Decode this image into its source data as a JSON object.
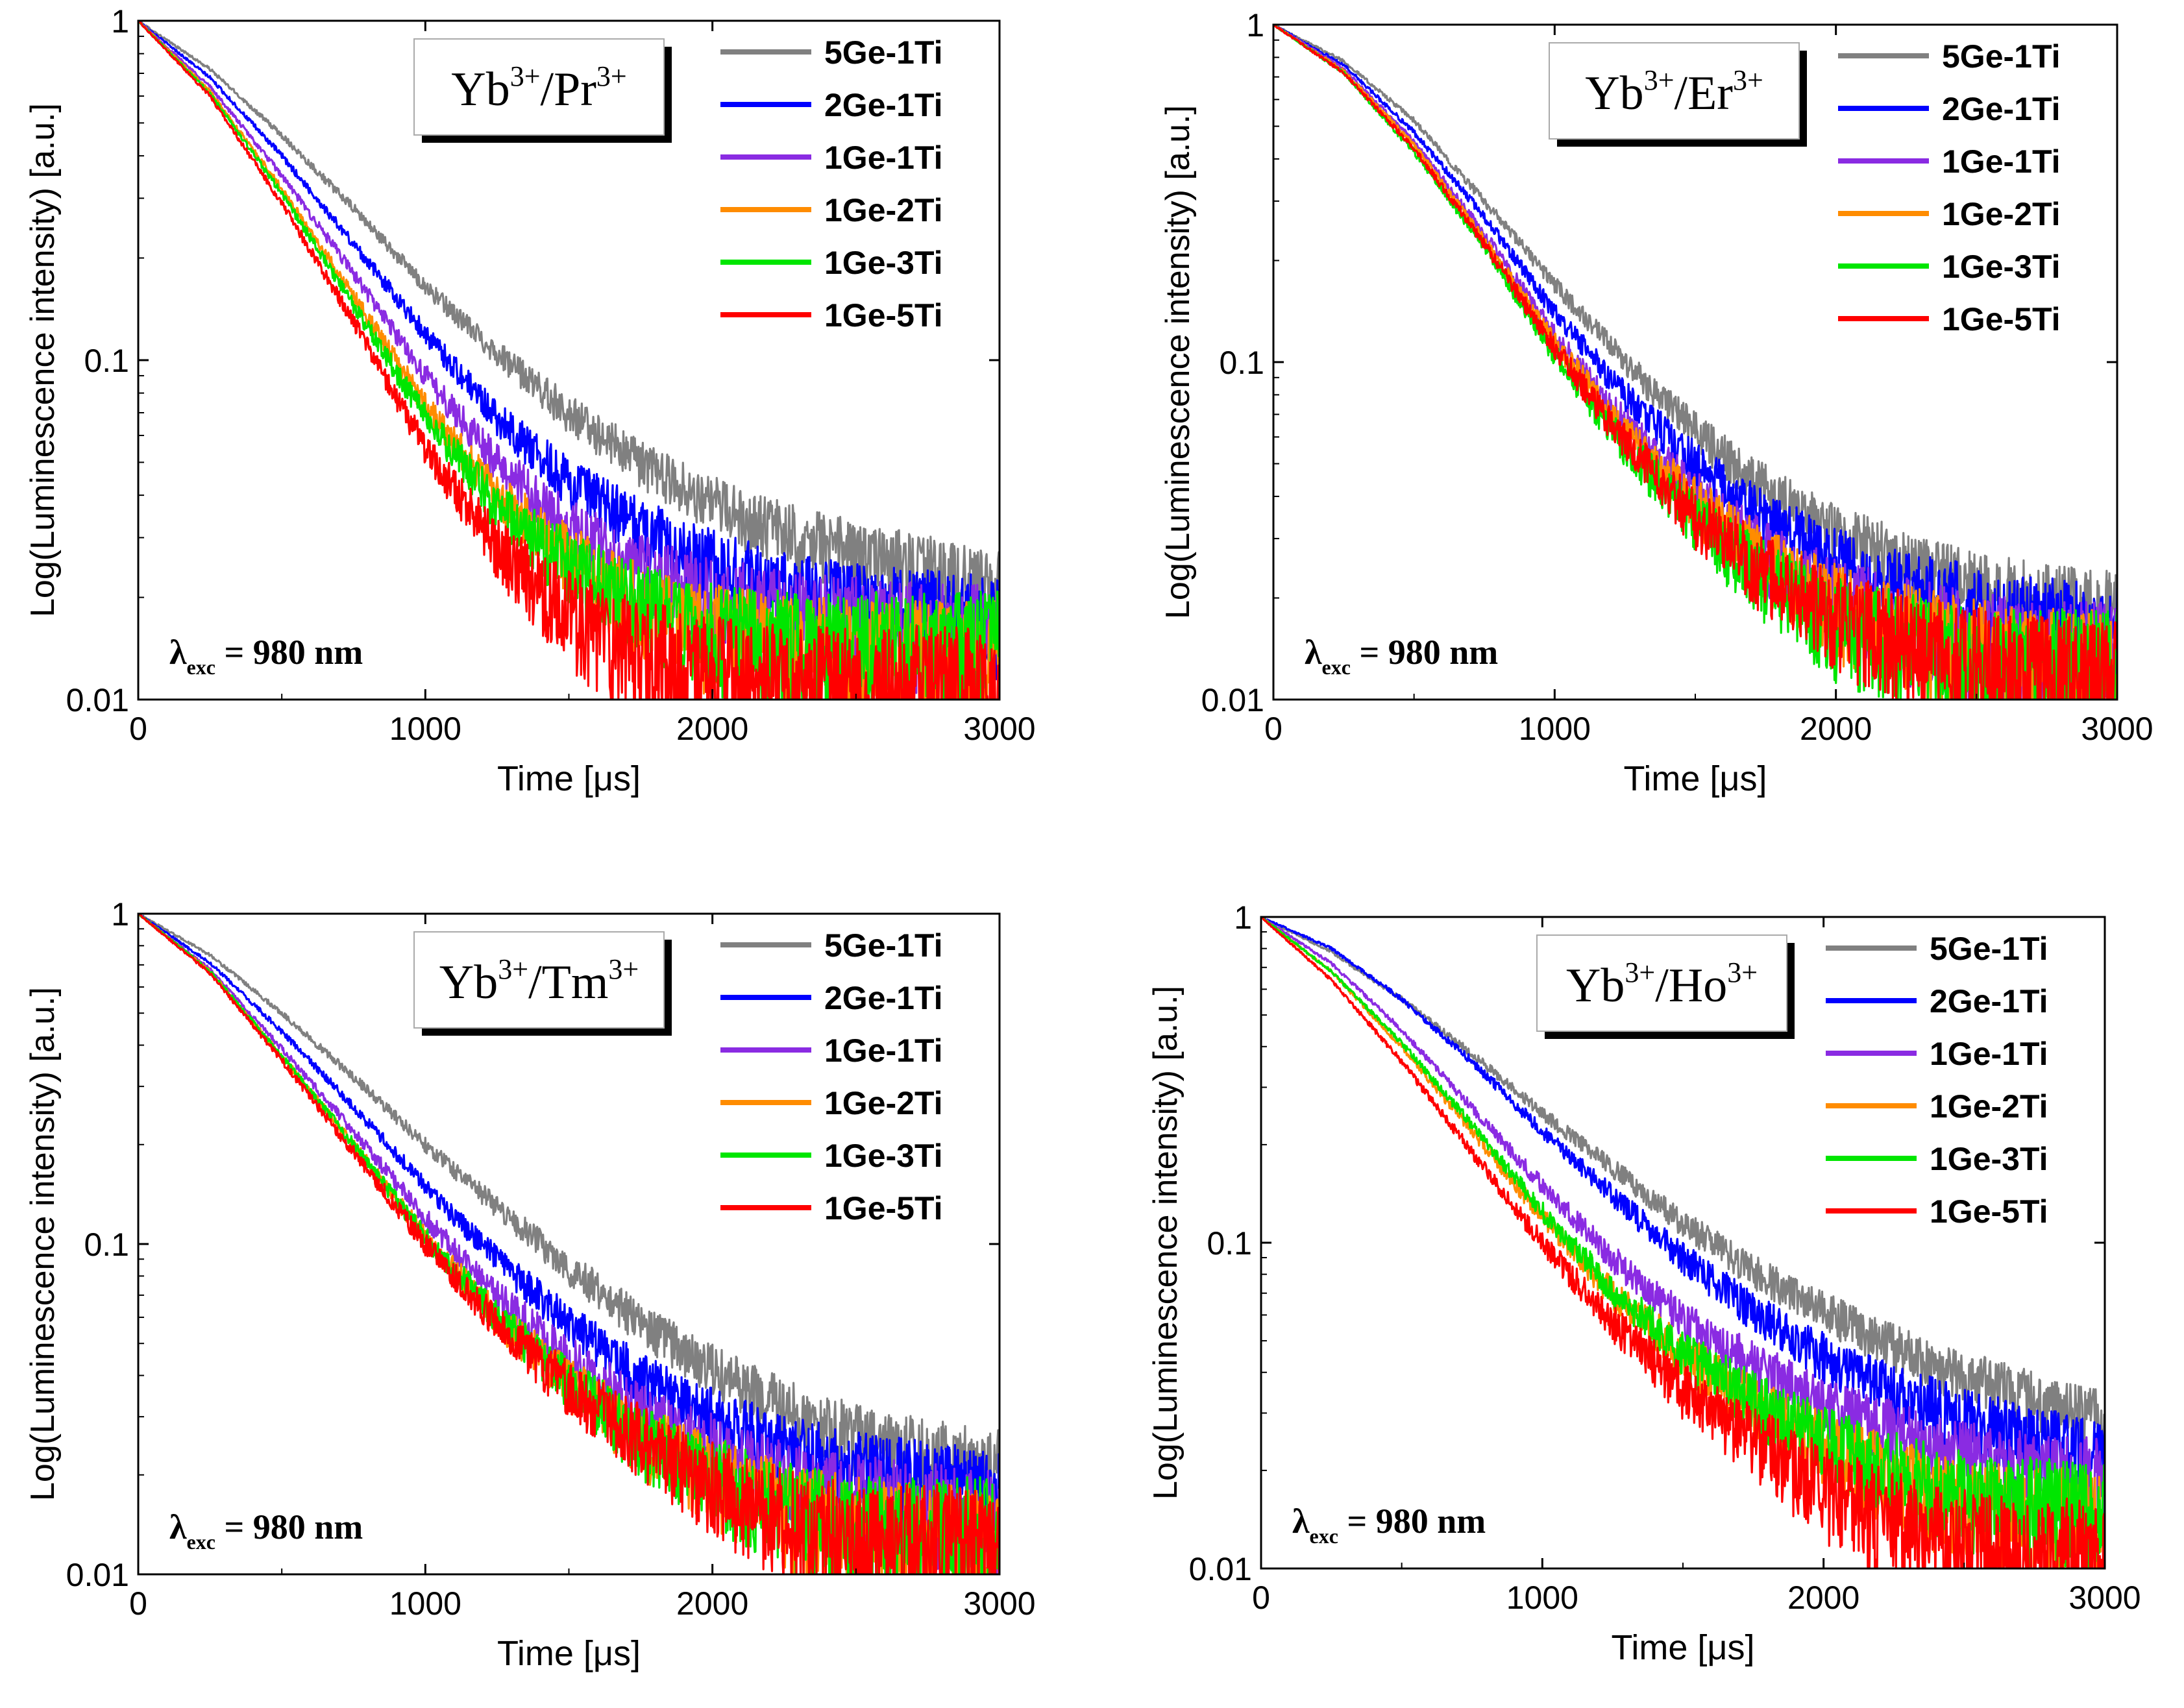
{
  "figure": {
    "excitation_symbol": "λ",
    "excitation_subscript": "exc",
    "excitation_value": "= 980 nm"
  },
  "chart_data": [
    {
      "type": "line",
      "panel": "top-left",
      "label_base": "Yb",
      "label_base_sup": "3+",
      "label_sep": "/",
      "label_ion": "Pr",
      "label_ion_sup": "3+",
      "xlabel": "Time [μs]",
      "ylabel": "Log(Luminescence intensity) [a.u.]",
      "xscale": "linear",
      "yscale": "log",
      "xlim": [
        0,
        3000
      ],
      "ylim": [
        0.01,
        1
      ],
      "xticks": [
        0,
        1000,
        2000,
        3000
      ],
      "xtick_labels": [
        "0",
        "1000",
        "2000",
        "3000"
      ],
      "yticks": [
        0.01,
        0.1,
        1
      ],
      "ytick_labels": [
        "0.01",
        "0.1",
        "1"
      ],
      "legend_position": "top-right",
      "series": [
        {
          "name": "5Ge-1Ti",
          "color": "#808080",
          "x": [
            0,
            250,
            500,
            750,
            1000,
            1250,
            1500,
            1750,
            2000,
            2250,
            2500,
            2750,
            3000
          ],
          "y": [
            1.0,
            0.72,
            0.46,
            0.28,
            0.165,
            0.105,
            0.07,
            0.05,
            0.038,
            0.031,
            0.027,
            0.024,
            0.021
          ]
        },
        {
          "name": "2Ge-1Ti",
          "color": "#0000ff",
          "x": [
            0,
            250,
            500,
            750,
            1000,
            1250,
            1500,
            1750,
            2000,
            2250,
            2500,
            2750,
            3000
          ],
          "y": [
            1.0,
            0.68,
            0.4,
            0.22,
            0.12,
            0.068,
            0.044,
            0.032,
            0.025,
            0.021,
            0.019,
            0.018,
            0.017
          ]
        },
        {
          "name": "1Ge-1Ti",
          "color": "#8a2be2",
          "x": [
            0,
            250,
            500,
            750,
            1000,
            1250,
            1500,
            1750,
            2000,
            2250,
            2500,
            2750,
            3000
          ],
          "y": [
            1.0,
            0.64,
            0.35,
            0.18,
            0.09,
            0.05,
            0.032,
            0.024,
            0.02,
            0.018,
            0.017,
            0.016,
            0.016
          ]
        },
        {
          "name": "1Ge-2Ti",
          "color": "#ff8c00",
          "x": [
            0,
            250,
            500,
            750,
            1000,
            1250,
            1500,
            1750,
            2000,
            2250,
            2500,
            2750,
            3000
          ],
          "y": [
            1.0,
            0.62,
            0.32,
            0.155,
            0.074,
            0.04,
            0.026,
            0.019,
            0.016,
            0.015,
            0.014,
            0.014,
            0.014
          ]
        },
        {
          "name": "1Ge-3Ti",
          "color": "#00e600",
          "x": [
            0,
            250,
            500,
            750,
            1000,
            1250,
            1500,
            1750,
            2000,
            2250,
            2500,
            2750,
            3000
          ],
          "y": [
            1.0,
            0.61,
            0.31,
            0.145,
            0.068,
            0.037,
            0.025,
            0.019,
            0.016,
            0.015,
            0.015,
            0.015,
            0.015
          ]
        },
        {
          "name": "1Ge-5Ti",
          "color": "#ff0000",
          "x": [
            0,
            250,
            500,
            750,
            1000,
            1250,
            1500,
            1750,
            2000,
            2250,
            2500,
            2750,
            3000
          ],
          "y": [
            1.0,
            0.6,
            0.29,
            0.13,
            0.055,
            0.028,
            0.018,
            0.014,
            0.012,
            0.011,
            0.011,
            0.011,
            0.011
          ]
        }
      ]
    },
    {
      "type": "line",
      "panel": "top-right",
      "label_base": "Yb",
      "label_base_sup": "3+",
      "label_sep": "/",
      "label_ion": "Er",
      "label_ion_sup": "3+",
      "xlabel": "Time [μs]",
      "ylabel": "Log(Luminescence intensity) [a.u.]",
      "xscale": "linear",
      "yscale": "log",
      "xlim": [
        0,
        3000
      ],
      "ylim": [
        0.01,
        1
      ],
      "xticks": [
        0,
        1000,
        2000,
        3000
      ],
      "xtick_labels": [
        "0",
        "1000",
        "2000",
        "3000"
      ],
      "yticks": [
        0.01,
        0.1,
        1
      ],
      "ytick_labels": [
        "0.01",
        "0.1",
        "1"
      ],
      "legend_position": "top-right",
      "series": [
        {
          "name": "5Ge-1Ti",
          "color": "#808080",
          "x": [
            0,
            250,
            500,
            750,
            1000,
            1250,
            1500,
            1750,
            2000,
            2250,
            2500,
            2750,
            3000
          ],
          "y": [
            1.0,
            0.78,
            0.52,
            0.3,
            0.17,
            0.1,
            0.063,
            0.042,
            0.031,
            0.025,
            0.021,
            0.019,
            0.018
          ]
        },
        {
          "name": "2Ge-1Ti",
          "color": "#0000ff",
          "x": [
            0,
            250,
            500,
            750,
            1000,
            1250,
            1500,
            1750,
            2000,
            2250,
            2500,
            2750,
            3000
          ],
          "y": [
            1.0,
            0.76,
            0.48,
            0.27,
            0.14,
            0.08,
            0.05,
            0.034,
            0.026,
            0.021,
            0.019,
            0.017,
            0.016
          ]
        },
        {
          "name": "1Ge-1Ti",
          "color": "#8a2be2",
          "x": [
            0,
            250,
            500,
            750,
            1000,
            1250,
            1500,
            1750,
            2000,
            2250,
            2500,
            2750,
            3000
          ],
          "y": [
            1.0,
            0.74,
            0.45,
            0.24,
            0.12,
            0.066,
            0.04,
            0.027,
            0.02,
            0.017,
            0.015,
            0.014,
            0.014
          ]
        },
        {
          "name": "1Ge-2Ti",
          "color": "#ff8c00",
          "x": [
            0,
            250,
            500,
            750,
            1000,
            1250,
            1500,
            1750,
            2000,
            2250,
            2500,
            2750,
            3000
          ],
          "y": [
            1.0,
            0.73,
            0.44,
            0.23,
            0.115,
            0.062,
            0.038,
            0.026,
            0.019,
            0.016,
            0.014,
            0.013,
            0.013
          ]
        },
        {
          "name": "1Ge-3Ti",
          "color": "#00e600",
          "x": [
            0,
            250,
            500,
            750,
            1000,
            1250,
            1500,
            1750,
            2000,
            2250,
            2500,
            2750,
            3000
          ],
          "y": [
            1.0,
            0.72,
            0.42,
            0.22,
            0.105,
            0.056,
            0.034,
            0.023,
            0.017,
            0.015,
            0.013,
            0.013,
            0.013
          ]
        },
        {
          "name": "1Ge-5Ti",
          "color": "#ff0000",
          "x": [
            0,
            250,
            500,
            750,
            1000,
            1250,
            1500,
            1750,
            2000,
            2250,
            2500,
            2750,
            3000
          ],
          "y": [
            1.0,
            0.72,
            0.43,
            0.225,
            0.11,
            0.058,
            0.035,
            0.024,
            0.018,
            0.015,
            0.013,
            0.012,
            0.012
          ]
        }
      ]
    },
    {
      "type": "line",
      "panel": "bottom-left",
      "label_base": "Yb",
      "label_base_sup": "3+",
      "label_sep": "/",
      "label_ion": "Tm",
      "label_ion_sup": "3+",
      "xlabel": "Time [μs]",
      "ylabel": "Log(Luminescence intensity) [a.u.]",
      "xscale": "linear",
      "yscale": "log",
      "xlim": [
        0,
        3000
      ],
      "ylim": [
        0.01,
        1
      ],
      "xticks": [
        0,
        1000,
        2000,
        3000
      ],
      "xtick_labels": [
        "0",
        "1000",
        "2000",
        "3000"
      ],
      "yticks": [
        0.01,
        0.1,
        1
      ],
      "ytick_labels": [
        "0.01",
        "0.1",
        "1"
      ],
      "legend_position": "top-right",
      "series": [
        {
          "name": "5Ge-1Ti",
          "color": "#808080",
          "x": [
            0,
            250,
            500,
            750,
            1000,
            1250,
            1500,
            1750,
            2000,
            2250,
            2500,
            2750,
            3000
          ],
          "y": [
            1.0,
            0.75,
            0.5,
            0.32,
            0.2,
            0.13,
            0.085,
            0.058,
            0.042,
            0.032,
            0.026,
            0.023,
            0.021
          ]
        },
        {
          "name": "2Ge-1Ti",
          "color": "#0000ff",
          "x": [
            0,
            250,
            500,
            750,
            1000,
            1250,
            1500,
            1750,
            2000,
            2250,
            2500,
            2750,
            3000
          ],
          "y": [
            1.0,
            0.71,
            0.44,
            0.26,
            0.15,
            0.09,
            0.058,
            0.04,
            0.03,
            0.024,
            0.021,
            0.019,
            0.018
          ]
        },
        {
          "name": "1Ge-1Ti",
          "color": "#8a2be2",
          "x": [
            0,
            250,
            500,
            750,
            1000,
            1250,
            1500,
            1750,
            2000,
            2250,
            2500,
            2750,
            3000
          ],
          "y": [
            1.0,
            0.68,
            0.39,
            0.22,
            0.12,
            0.07,
            0.045,
            0.031,
            0.024,
            0.019,
            0.017,
            0.016,
            0.015
          ]
        },
        {
          "name": "1Ge-2Ti",
          "color": "#ff8c00",
          "x": [
            0,
            250,
            500,
            750,
            1000,
            1250,
            1500,
            1750,
            2000,
            2250,
            2500,
            2750,
            3000
          ],
          "y": [
            1.0,
            0.67,
            0.37,
            0.2,
            0.105,
            0.06,
            0.038,
            0.026,
            0.02,
            0.016,
            0.014,
            0.013,
            0.013
          ]
        },
        {
          "name": "1Ge-3Ti",
          "color": "#00e600",
          "x": [
            0,
            250,
            500,
            750,
            1000,
            1250,
            1500,
            1750,
            2000,
            2250,
            2500,
            2750,
            3000
          ],
          "y": [
            1.0,
            0.67,
            0.37,
            0.2,
            0.105,
            0.06,
            0.038,
            0.026,
            0.02,
            0.016,
            0.014,
            0.014,
            0.014
          ]
        },
        {
          "name": "1Ge-5Ti",
          "color": "#ff0000",
          "x": [
            0,
            250,
            500,
            750,
            1000,
            1250,
            1500,
            1750,
            2000,
            2250,
            2500,
            2750,
            3000
          ],
          "y": [
            1.0,
            0.66,
            0.36,
            0.19,
            0.1,
            0.058,
            0.037,
            0.026,
            0.019,
            0.015,
            0.013,
            0.013,
            0.013
          ]
        }
      ]
    },
    {
      "type": "line",
      "panel": "bottom-right",
      "label_base": "Yb",
      "label_base_sup": "3+",
      "label_sep": "/",
      "label_ion": "Ho",
      "label_ion_sup": "3+",
      "xlabel": "Time [μs]",
      "ylabel": "Log(Luminescence intensity) [a.u.]",
      "xscale": "linear",
      "yscale": "log",
      "xlim": [
        0,
        3000
      ],
      "ylim": [
        0.01,
        1
      ],
      "xticks": [
        0,
        1000,
        2000,
        3000
      ],
      "xtick_labels": [
        "0",
        "1000",
        "2000",
        "3000"
      ],
      "yticks": [
        0.01,
        0.1,
        1
      ],
      "ytick_labels": [
        "0.01",
        "0.1",
        "1"
      ],
      "legend_position": "top-right",
      "series": [
        {
          "name": "5Ge-1Ti",
          "color": "#808080",
          "x": [
            0,
            250,
            500,
            750,
            1000,
            1250,
            1500,
            1750,
            2000,
            2250,
            2500,
            2750,
            3000
          ],
          "y": [
            1.0,
            0.78,
            0.56,
            0.38,
            0.25,
            0.17,
            0.115,
            0.082,
            0.062,
            0.048,
            0.039,
            0.033,
            0.028
          ]
        },
        {
          "name": "2Ge-1Ti",
          "color": "#0000ff",
          "x": [
            0,
            250,
            500,
            750,
            1000,
            1250,
            1500,
            1750,
            2000,
            2250,
            2500,
            2750,
            3000
          ],
          "y": [
            1.0,
            0.8,
            0.56,
            0.36,
            0.22,
            0.14,
            0.09,
            0.062,
            0.045,
            0.035,
            0.029,
            0.025,
            0.022
          ]
        },
        {
          "name": "1Ge-1Ti",
          "color": "#8a2be2",
          "x": [
            0,
            250,
            500,
            750,
            1000,
            1250,
            1500,
            1750,
            2000,
            2250,
            2500,
            2750,
            3000
          ],
          "y": [
            1.0,
            0.72,
            0.45,
            0.26,
            0.15,
            0.09,
            0.058,
            0.042,
            0.032,
            0.026,
            0.022,
            0.02,
            0.019
          ]
        },
        {
          "name": "1Ge-2Ti",
          "color": "#ff8c00",
          "x": [
            0,
            250,
            500,
            750,
            1000,
            1250,
            1500,
            1750,
            2000,
            2250,
            2500,
            2750,
            3000
          ],
          "y": [
            1.0,
            0.68,
            0.4,
            0.22,
            0.12,
            0.07,
            0.045,
            0.032,
            0.024,
            0.019,
            0.016,
            0.015,
            0.014
          ]
        },
        {
          "name": "1Ge-3Ti",
          "color": "#00e600",
          "x": [
            0,
            250,
            500,
            750,
            1000,
            1250,
            1500,
            1750,
            2000,
            2250,
            2500,
            2750,
            3000
          ],
          "y": [
            1.0,
            0.68,
            0.41,
            0.23,
            0.125,
            0.072,
            0.046,
            0.033,
            0.025,
            0.02,
            0.017,
            0.016,
            0.015
          ]
        },
        {
          "name": "1Ge-5Ti",
          "color": "#ff0000",
          "x": [
            0,
            250,
            500,
            750,
            1000,
            1250,
            1500,
            1750,
            2000,
            2250,
            2500,
            2750,
            3000
          ],
          "y": [
            1.0,
            0.64,
            0.36,
            0.19,
            0.1,
            0.057,
            0.036,
            0.025,
            0.018,
            0.014,
            0.012,
            0.011,
            0.011
          ]
        }
      ]
    }
  ]
}
